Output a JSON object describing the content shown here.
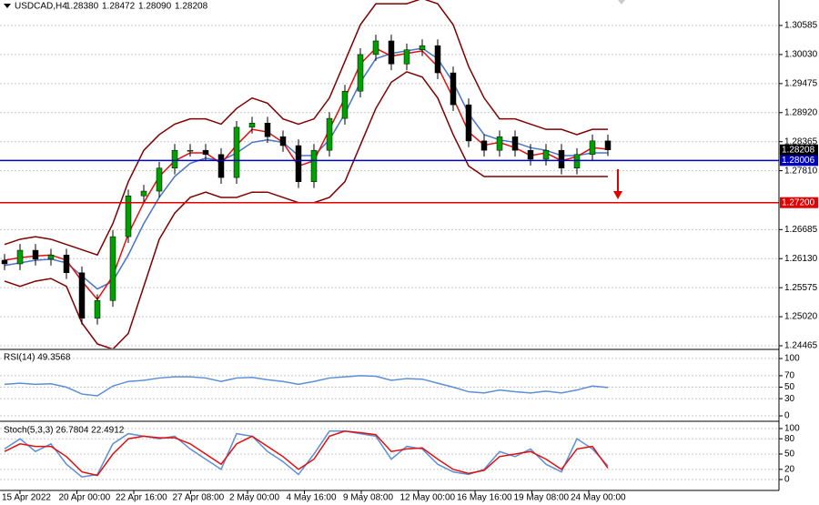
{
  "header": {
    "symbol": "USDCAD,H4",
    "ohlc": [
      "1.28380",
      "1.28472",
      "1.28090",
      "1.28208"
    ]
  },
  "x_labels": [
    "15 Apr 2022",
    "20 Apr 00:00",
    "22 Apr 16:00",
    "27 Apr 08:00",
    "2 May 00:00",
    "4 May 16:00",
    "9 May 08:00",
    "12 May 00:00",
    "16 May 16:00",
    "19 May 08:00",
    "24 May 00:00"
  ],
  "chart_data": [
    {
      "type": "candlestick",
      "ylim": [
        1.24413,
        1.31072
      ],
      "yticks": [
        1.30585,
        {
          "value": 1.3003,
          "label": "1.30030"
        },
        1.29475,
        {
          "value": 1.2892,
          "label": "1.28920"
        },
        1.28365,
        {
          "value": 1.2781,
          "label": "1.27810"
        },
        1.26685,
        {
          "value": 1.2613,
          "label": "1.26130"
        },
        1.25575,
        {
          "value": 1.2502,
          "label": "1.25020"
        },
        1.24465
      ],
      "grid": true,
      "up_color": "#00a000",
      "down_color": "#000000",
      "open": [
        1.261,
        1.2603,
        1.2629,
        1.2612,
        1.262,
        1.2586,
        1.2499,
        1.2533,
        1.2655,
        1.2733,
        1.2742,
        1.2786,
        1.282,
        1.282,
        1.2812,
        1.2768,
        1.2864,
        1.2872,
        1.2846,
        1.2829,
        1.276,
        1.282,
        1.2881,
        1.2933,
        1.3003,
        1.3029,
        1.2985,
        1.3012,
        1.302,
        1.2968,
        1.2907,
        1.2838,
        1.282,
        1.2846,
        1.282,
        1.2803,
        1.282,
        1.2786,
        1.2812,
        1.2838
      ],
      "high": [
        1.2622,
        1.2641,
        1.2641,
        1.2632,
        1.2632,
        1.2598,
        1.2545,
        1.2667,
        1.2745,
        1.2754,
        1.2798,
        1.2832,
        1.2832,
        1.2832,
        1.2824,
        1.2876,
        1.2884,
        1.2884,
        1.2858,
        1.2841,
        1.2832,
        1.2893,
        1.2945,
        1.3015,
        1.3041,
        1.3041,
        1.3024,
        1.3032,
        1.3032,
        1.298,
        1.2919,
        1.285,
        1.2858,
        1.2858,
        1.2832,
        1.2832,
        1.2832,
        1.2824,
        1.285,
        1.285
      ],
      "low": [
        1.2591,
        1.2591,
        1.26,
        1.26,
        1.2574,
        1.2487,
        1.2487,
        1.2521,
        1.2643,
        1.2721,
        1.273,
        1.2774,
        1.2808,
        1.28,
        1.2756,
        1.2756,
        1.2852,
        1.2834,
        1.2817,
        1.2748,
        1.2748,
        1.2808,
        1.2869,
        1.2921,
        1.2991,
        1.2973,
        1.2973,
        1.3,
        1.2956,
        1.2895,
        1.2826,
        1.2808,
        1.2808,
        1.2808,
        1.2791,
        1.2791,
        1.2774,
        1.2774,
        1.28,
        1.2809
      ],
      "close": [
        1.2603,
        1.2629,
        1.2612,
        1.262,
        1.2586,
        1.2499,
        1.2533,
        1.2655,
        1.2733,
        1.2742,
        1.2786,
        1.282,
        1.282,
        1.2812,
        1.2768,
        1.2864,
        1.2872,
        1.2846,
        1.2829,
        1.276,
        1.282,
        1.2881,
        1.2933,
        1.3003,
        1.3029,
        1.2985,
        1.3012,
        1.302,
        1.2968,
        1.2907,
        1.2838,
        1.282,
        1.2846,
        1.282,
        1.2803,
        1.282,
        1.2786,
        1.2812,
        1.2838,
        1.28208
      ],
      "lines": [
        {
          "color": "#800000",
          "values": [
            1.264,
            1.265,
            1.2655,
            1.265,
            1.264,
            1.263,
            1.262,
            1.268,
            1.276,
            1.282,
            1.285,
            1.287,
            1.288,
            1.288,
            1.287,
            1.29,
            1.292,
            1.291,
            1.288,
            1.287,
            1.288,
            1.292,
            1.299,
            1.306,
            1.31,
            1.31,
            1.31,
            1.311,
            1.31,
            1.306,
            1.298,
            1.292,
            1.288,
            1.288,
            1.287,
            1.286,
            1.286,
            1.285,
            1.286,
            1.286
          ]
        },
        {
          "color": "#800000",
          "values": [
            1.257,
            1.256,
            1.257,
            1.2575,
            1.256,
            1.249,
            1.245,
            1.244,
            1.247,
            1.256,
            1.265,
            1.27,
            1.273,
            1.274,
            1.273,
            1.273,
            1.274,
            1.274,
            1.273,
            1.272,
            1.272,
            1.273,
            1.276,
            1.283,
            1.29,
            1.295,
            1.297,
            1.296,
            1.292,
            1.285,
            1.279,
            1.277,
            1.277,
            1.277,
            1.277,
            1.277,
            1.277,
            1.277,
            1.277,
            1.277
          ]
        },
        {
          "color": "#4a74c8",
          "values": [
            1.26,
            1.2605,
            1.261,
            1.2612,
            1.2605,
            1.258,
            1.2555,
            1.257,
            1.262,
            1.268,
            1.273,
            1.277,
            1.2795,
            1.2805,
            1.28,
            1.2815,
            1.2835,
            1.284,
            1.2835,
            1.281,
            1.281,
            1.284,
            1.289,
            1.295,
            1.2995,
            1.3005,
            1.301,
            1.3015,
            1.2995,
            1.295,
            1.289,
            1.285,
            1.284,
            1.2835,
            1.2825,
            1.282,
            1.281,
            1.281,
            1.2815,
            1.2815
          ]
        },
        {
          "color": "#e01010",
          "values": [
            1.261,
            1.2615,
            1.2618,
            1.262,
            1.261,
            1.257,
            1.2535,
            1.258,
            1.266,
            1.272,
            1.277,
            1.28,
            1.2815,
            1.2815,
            1.2795,
            1.283,
            1.286,
            1.2855,
            1.2835,
            1.279,
            1.28,
            1.286,
            1.292,
            1.2985,
            1.3015,
            1.3,
            1.3005,
            1.301,
            1.298,
            1.292,
            1.2855,
            1.283,
            1.2835,
            1.2825,
            1.281,
            1.2815,
            1.28,
            1.2808,
            1.2825,
            1.2822
          ]
        }
      ],
      "levels": [
        {
          "value": 1.28006,
          "color": "#0000c0"
        },
        {
          "value": 1.272,
          "label": "1.27200",
          "color": "#e00000"
        }
      ],
      "last_price": {
        "value": 1.28208,
        "color": "#000000"
      }
    },
    {
      "type": "line",
      "title": "RSI(14) 49.3568",
      "ylim": [
        -7.9,
        114.3
      ],
      "yticks": [
        0,
        30,
        50,
        70,
        100
      ],
      "grid": true,
      "series": [
        {
          "color": "#5b8fd6",
          "values": [
            55,
            57,
            55,
            56,
            50,
            38,
            35,
            52,
            60,
            62,
            66,
            68,
            68,
            66,
            60,
            66,
            67,
            63,
            60,
            55,
            60,
            66,
            68,
            70,
            69,
            62,
            65,
            64,
            57,
            50,
            42,
            40,
            45,
            42,
            40,
            43,
            40,
            45,
            52,
            49.3568
          ]
        }
      ]
    },
    {
      "type": "line",
      "title": "Stoch(5,3,3) 26.7804 22.4912",
      "ylim": [
        -19.6,
        110.7
      ],
      "yticks": [
        0,
        20,
        50,
        80,
        100
      ],
      "grid": true,
      "series": [
        {
          "color": "#5b8fd6",
          "values": [
            60,
            80,
            55,
            70,
            30,
            5,
            10,
            70,
            90,
            85,
            80,
            85,
            60,
            40,
            20,
            90,
            85,
            55,
            35,
            10,
            50,
            95,
            95,
            90,
            85,
            40,
            65,
            60,
            30,
            15,
            10,
            20,
            55,
            45,
            60,
            30,
            15,
            80,
            60,
            26.7804
          ]
        },
        {
          "color": "#e01010",
          "values": [
            55,
            70,
            65,
            65,
            45,
            15,
            8,
            50,
            80,
            85,
            82,
            82,
            70,
            50,
            30,
            70,
            85,
            65,
            45,
            20,
            40,
            85,
            95,
            92,
            88,
            55,
            60,
            62,
            40,
            20,
            12,
            18,
            45,
            50,
            55,
            40,
            20,
            60,
            65,
            22.4912
          ]
        }
      ]
    }
  ]
}
